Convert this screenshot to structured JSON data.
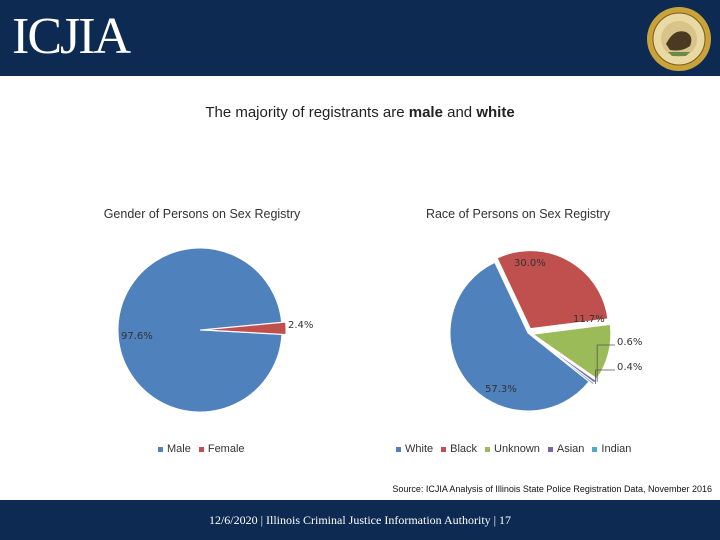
{
  "header": {
    "logo_text": "ICJIA",
    "colors": {
      "header_bg": "#0d2a52"
    },
    "seal_icon": "illinois-state-seal-icon"
  },
  "slide": {
    "title_pre": "The majority of registrants are ",
    "title_bold1": "male",
    "title_mid": " and ",
    "title_bold2": "white"
  },
  "chart_data": [
    {
      "type": "pie",
      "title": "Gender of Persons on Sex Registry",
      "categories": [
        "Male",
        "Female"
      ],
      "values": [
        97.6,
        2.4
      ],
      "labels": [
        "97.6%",
        "2.4%"
      ],
      "colors": [
        "#4f81bd",
        "#c0504d"
      ],
      "exploded": [
        false,
        true
      ],
      "legend": "bottom"
    },
    {
      "type": "pie",
      "title": "Race of Persons on Sex Registry",
      "categories": [
        "White",
        "Black",
        "Unknown",
        "Asian",
        "Indian"
      ],
      "values": [
        57.3,
        30.0,
        11.7,
        0.6,
        0.4
      ],
      "labels": [
        "57.3%",
        "30.0%",
        "11.7%",
        "0.6%",
        "0.4%"
      ],
      "colors": [
        "#4f81bd",
        "#c0504d",
        "#9bbb59",
        "#8064a2",
        "#4bacc6"
      ],
      "exploded": [
        false,
        true,
        true,
        true,
        true
      ],
      "legend": "bottom"
    }
  ],
  "source": "Source: ICJIA Analysis of Illinois State Police Registration Data, November 2016",
  "footer": "12/6/2020 | Illinois Criminal Justice Information Authority | 17"
}
